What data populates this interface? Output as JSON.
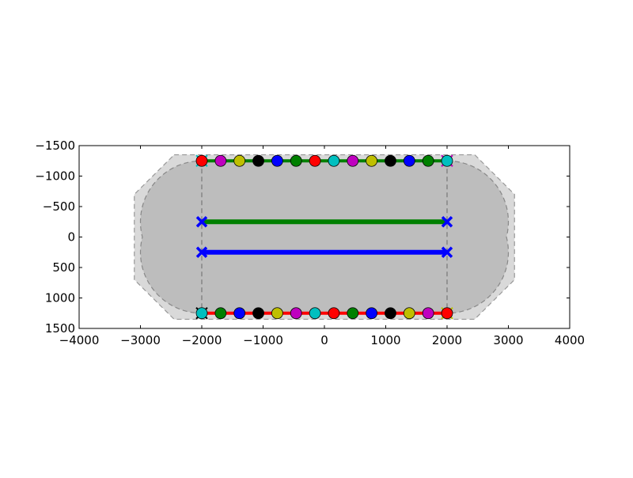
{
  "chart_data": {
    "type": "line",
    "title": "",
    "xlabel": "",
    "ylabel": "",
    "xlim": [
      -4000,
      4000
    ],
    "ylim": [
      1500,
      -1500
    ],
    "y_inverted": true,
    "grid": false,
    "xticks": [
      -4000,
      -3000,
      -2000,
      -1000,
      0,
      1000,
      2000,
      3000,
      4000
    ],
    "yticks": [
      -1500,
      -1000,
      -500,
      0,
      500,
      1000,
      1500
    ],
    "regions": [
      {
        "kind": "outer-polygon",
        "fill": "#d9d9d9",
        "edge": "#999999",
        "dashed": true,
        "points": [
          [
            -2450,
            -1350
          ],
          [
            2450,
            -1350
          ],
          [
            3100,
            -700
          ],
          [
            3100,
            700
          ],
          [
            2450,
            1350
          ],
          [
            -2450,
            1350
          ],
          [
            -3100,
            700
          ],
          [
            -3100,
            -700
          ]
        ]
      },
      {
        "kind": "buffer",
        "fill": "#bdbdbd",
        "edge": "#888888",
        "dashed": true,
        "segments": [
          [
            [
              -2000,
              -250
            ],
            [
              2000,
              -250
            ]
          ],
          [
            [
              -2000,
              250
            ],
            [
              2000,
              250
            ]
          ]
        ],
        "radius": 1000,
        "extent_y": [
          -1250,
          1250
        ]
      }
    ],
    "dashed_verticals": [
      {
        "x": -2000,
        "y": [
          -1250,
          1250
        ],
        "color": "#777777"
      },
      {
        "x": 2000,
        "y": [
          -1250,
          1250
        ],
        "color": "#777777"
      }
    ],
    "series": [
      {
        "line_color": "#008000",
        "y": -250,
        "x": [
          -2000,
          2000
        ],
        "marker": "x",
        "marker_color": "#0000ff",
        "width": "thick"
      },
      {
        "line_color": "#0000ff",
        "y": 250,
        "x": [
          -2000,
          2000
        ],
        "marker": "x",
        "marker_color": "#0000ff",
        "width": "thick"
      },
      {
        "line_color": "#008000",
        "y": -1250,
        "x_range": [
          -2000,
          2000
        ],
        "count": 14,
        "marker": "o",
        "marker_colors": [
          "#ff0000",
          "#bf00bf",
          "#bfbf00",
          "#000000",
          "#0000ff",
          "#008000",
          "#ff0000",
          "#00bfbf",
          "#bf00bf",
          "#bfbf00",
          "#000000",
          "#0000ff",
          "#008000",
          "#00bfbf"
        ],
        "end_markers": [
          "#00bfbf",
          "#bf00bf"
        ]
      },
      {
        "line_color": "#ff0000",
        "y": 1250,
        "x_range": [
          -2000,
          2000
        ],
        "count": 14,
        "marker": "o",
        "marker_colors": [
          "#00bfbf",
          "#008000",
          "#0000ff",
          "#000000",
          "#bfbf00",
          "#bf00bf",
          "#00bfbf",
          "#ff0000",
          "#008000",
          "#0000ff",
          "#000000",
          "#bfbf00",
          "#bf00bf",
          "#ff0000"
        ],
        "end_markers": [
          "#000000",
          "#bfbf00"
        ]
      }
    ]
  }
}
